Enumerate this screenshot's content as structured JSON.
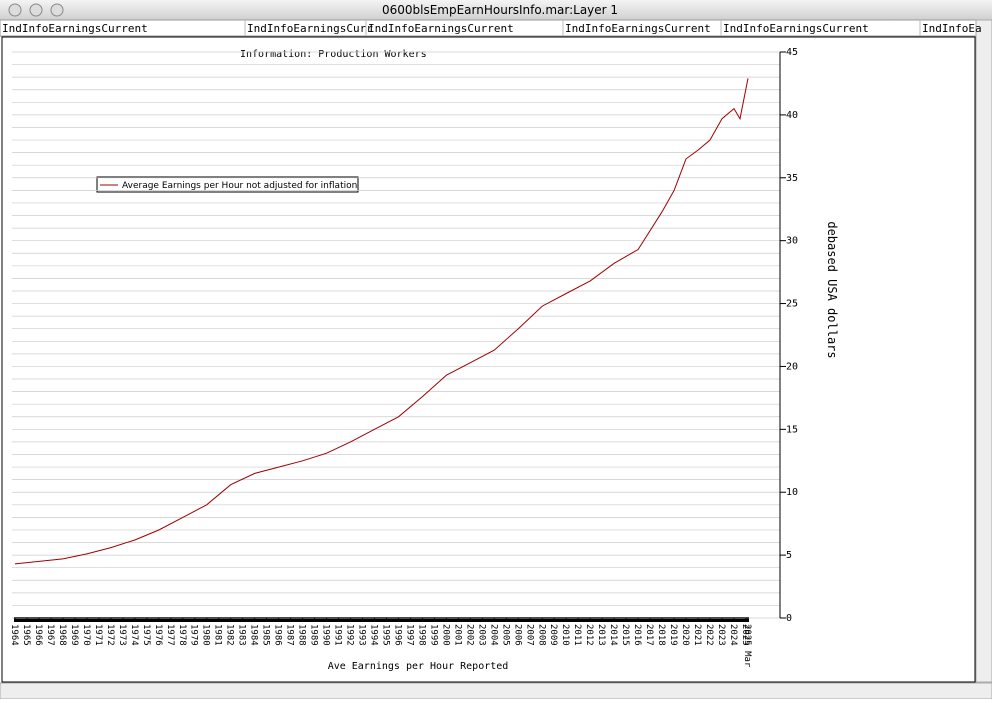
{
  "window": {
    "title": "0600blsEmpEarnHoursInfo.mar:Layer 1",
    "tabs": [
      "IndInfoEarningsCurrent",
      "IndInfoEarningsCurr",
      "IndInfoEarningsCurrent",
      "IndInfoEarningsCurrent",
      "IndInfoEarningsCurrent",
      "IndInfoEa"
    ]
  },
  "chart_data": {
    "type": "line",
    "title": "Information: Production Workers",
    "xlabel": "Ave Earnings per Hour Reported",
    "ylabel": "debased USA dollars",
    "x": [
      1964,
      1966,
      1968,
      1970,
      1972,
      1974,
      1976,
      1978,
      1980,
      1982,
      1984,
      1986,
      1988,
      1990,
      1992,
      1994,
      1996,
      1998,
      2000,
      2002,
      2004,
      2006,
      2008,
      2010,
      2012,
      2014,
      2016,
      2018,
      2019,
      2020,
      2021,
      2022,
      2023,
      2024,
      2024.5,
      2025.17
    ],
    "series": [
      {
        "name": "Average Earnings per Hour not adjusted for inflation",
        "color": "#a00000",
        "values": [
          4.3,
          4.5,
          4.7,
          5.1,
          5.6,
          6.2,
          7.0,
          8.0,
          9.0,
          10.6,
          11.5,
          12.0,
          12.5,
          13.1,
          14.0,
          15.0,
          16.0,
          17.6,
          19.3,
          20.3,
          21.3,
          23.0,
          24.8,
          25.8,
          26.8,
          28.2,
          29.3,
          32.3,
          34.0,
          36.5,
          37.2,
          38.0,
          39.7,
          40.5,
          39.7,
          42.9
        ]
      }
    ],
    "xlim": [
      1964,
      2025.17
    ],
    "xticks": [
      1964,
      1965,
      1966,
      1967,
      1968,
      1969,
      1970,
      1971,
      1972,
      1973,
      1974,
      1975,
      1976,
      1977,
      1978,
      1979,
      1980,
      1981,
      1982,
      1983,
      1984,
      1985,
      1986,
      1987,
      1988,
      1989,
      1990,
      1991,
      1992,
      1993,
      1994,
      1995,
      1996,
      1997,
      1998,
      1999,
      2000,
      2001,
      2002,
      2003,
      2004,
      2005,
      2006,
      2007,
      2008,
      2009,
      2010,
      2011,
      2012,
      2013,
      2014,
      2015,
      2016,
      2017,
      2018,
      2019,
      2020,
      2021,
      2022,
      2023,
      2024,
      2025,
      {
        "value": 2025.17,
        "label": "2025 Mar"
      }
    ],
    "ylim": [
      0,
      45
    ],
    "yticks": [
      0,
      5,
      10,
      15,
      20,
      25,
      30,
      35,
      40,
      45
    ],
    "grid": true,
    "minor_grid": 1,
    "legend": "upper left"
  }
}
